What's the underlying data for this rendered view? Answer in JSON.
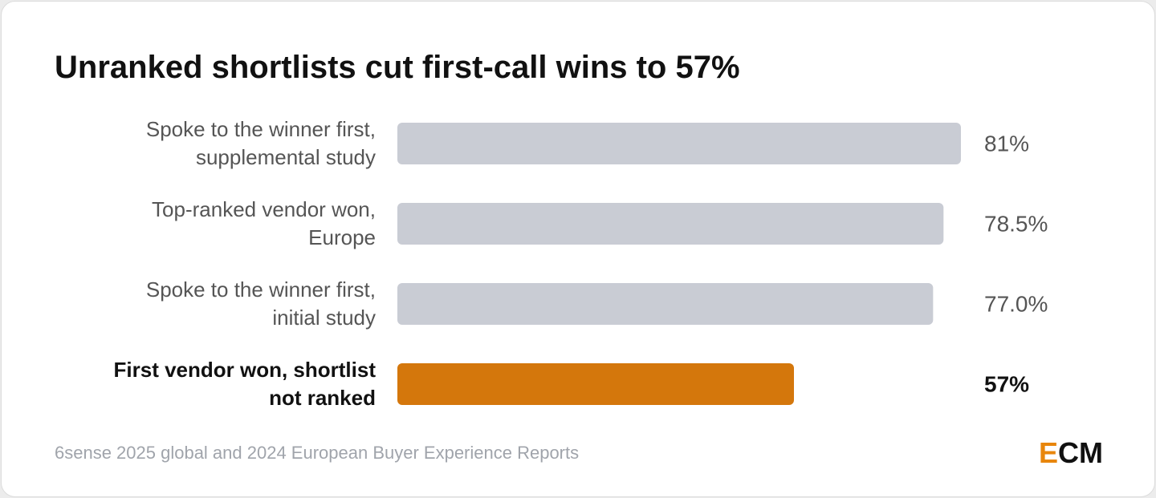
{
  "chart_data": {
    "type": "bar",
    "orientation": "horizontal",
    "title": "Unranked shortlists cut first-call wins to 57%",
    "categories": [
      "Spoke to the winner first,\nsupplemental study",
      "Top-ranked vendor won,\nEurope",
      "Spoke to the winner first,\ninitial study",
      "First vendor won, shortlist\nnot ranked"
    ],
    "values": [
      81,
      78.5,
      77,
      57
    ],
    "value_labels": [
      "81%",
      "78.5%",
      "77.0%",
      "57%"
    ],
    "colors": [
      "#c9ccd4",
      "#c9ccd4",
      "#c9ccd4",
      "#d4770c"
    ],
    "highlight": 3,
    "source": "6sense 2025 global and 2024 European Buyer Experience Reports",
    "logo": {
      "accent": "E",
      "rest": "CM",
      "accent_color": "#e8860c"
    }
  }
}
